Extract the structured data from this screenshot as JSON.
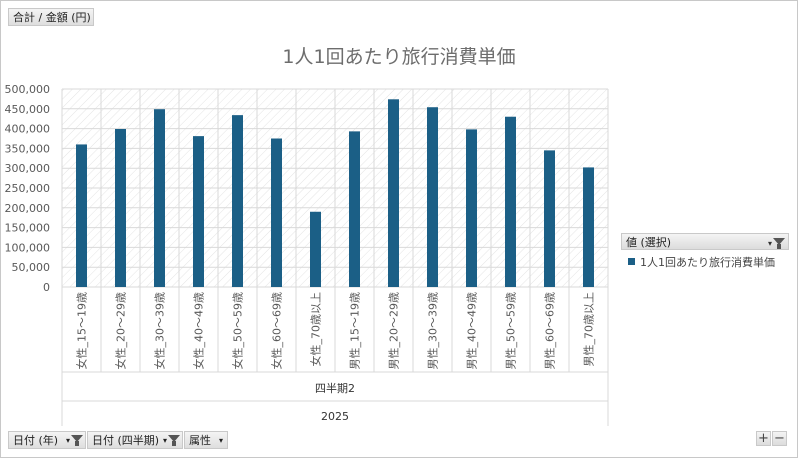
{
  "top_field": "合計 / 金額 (円)",
  "bottom_fields": [
    {
      "label": "日付 (年)",
      "icon": "filter-icon"
    },
    {
      "label": "日付 (四半期)",
      "icon": "filter-icon"
    },
    {
      "label": "属性",
      "icon": "dropdown-arrow-icon"
    }
  ],
  "legend": {
    "header": "値 (選択)",
    "item": "1人1回あたり旅行消費単価"
  },
  "zoom_controls": {
    "plus": "+",
    "minus": "−"
  },
  "chart_data": {
    "type": "bar",
    "title": "1人1回あたり旅行消費単価",
    "categories": [
      "女性_15～19歳",
      "女性_20～29歳",
      "女性_30～39歳",
      "女性_40～49歳",
      "女性_50～59歳",
      "女性_60～69歳",
      "女性_70歳以上",
      "男性_15～19歳",
      "男性_20～29歳",
      "男性_30～39歳",
      "男性_40～49歳",
      "男性_50～59歳",
      "男性_60～69歳",
      "男性_70歳以上"
    ],
    "series": [
      {
        "name": "1人1回あたり旅行消費単価",
        "values": [
          360000,
          399000,
          449000,
          381000,
          434000,
          375000,
          190000,
          393000,
          474000,
          454000,
          398000,
          430000,
          345000,
          302000
        ]
      }
    ],
    "group_labels": [
      "四半期2",
      "2025"
    ],
    "ylim": [
      0,
      500000
    ],
    "yticks": [
      0,
      50000,
      100000,
      150000,
      200000,
      250000,
      300000,
      350000,
      400000,
      450000,
      500000
    ],
    "grid": true,
    "legend_position": "right",
    "colors": {
      "bar": "#1b5f86",
      "grid": "#d9d9d9",
      "axis_text": "#595959"
    }
  }
}
